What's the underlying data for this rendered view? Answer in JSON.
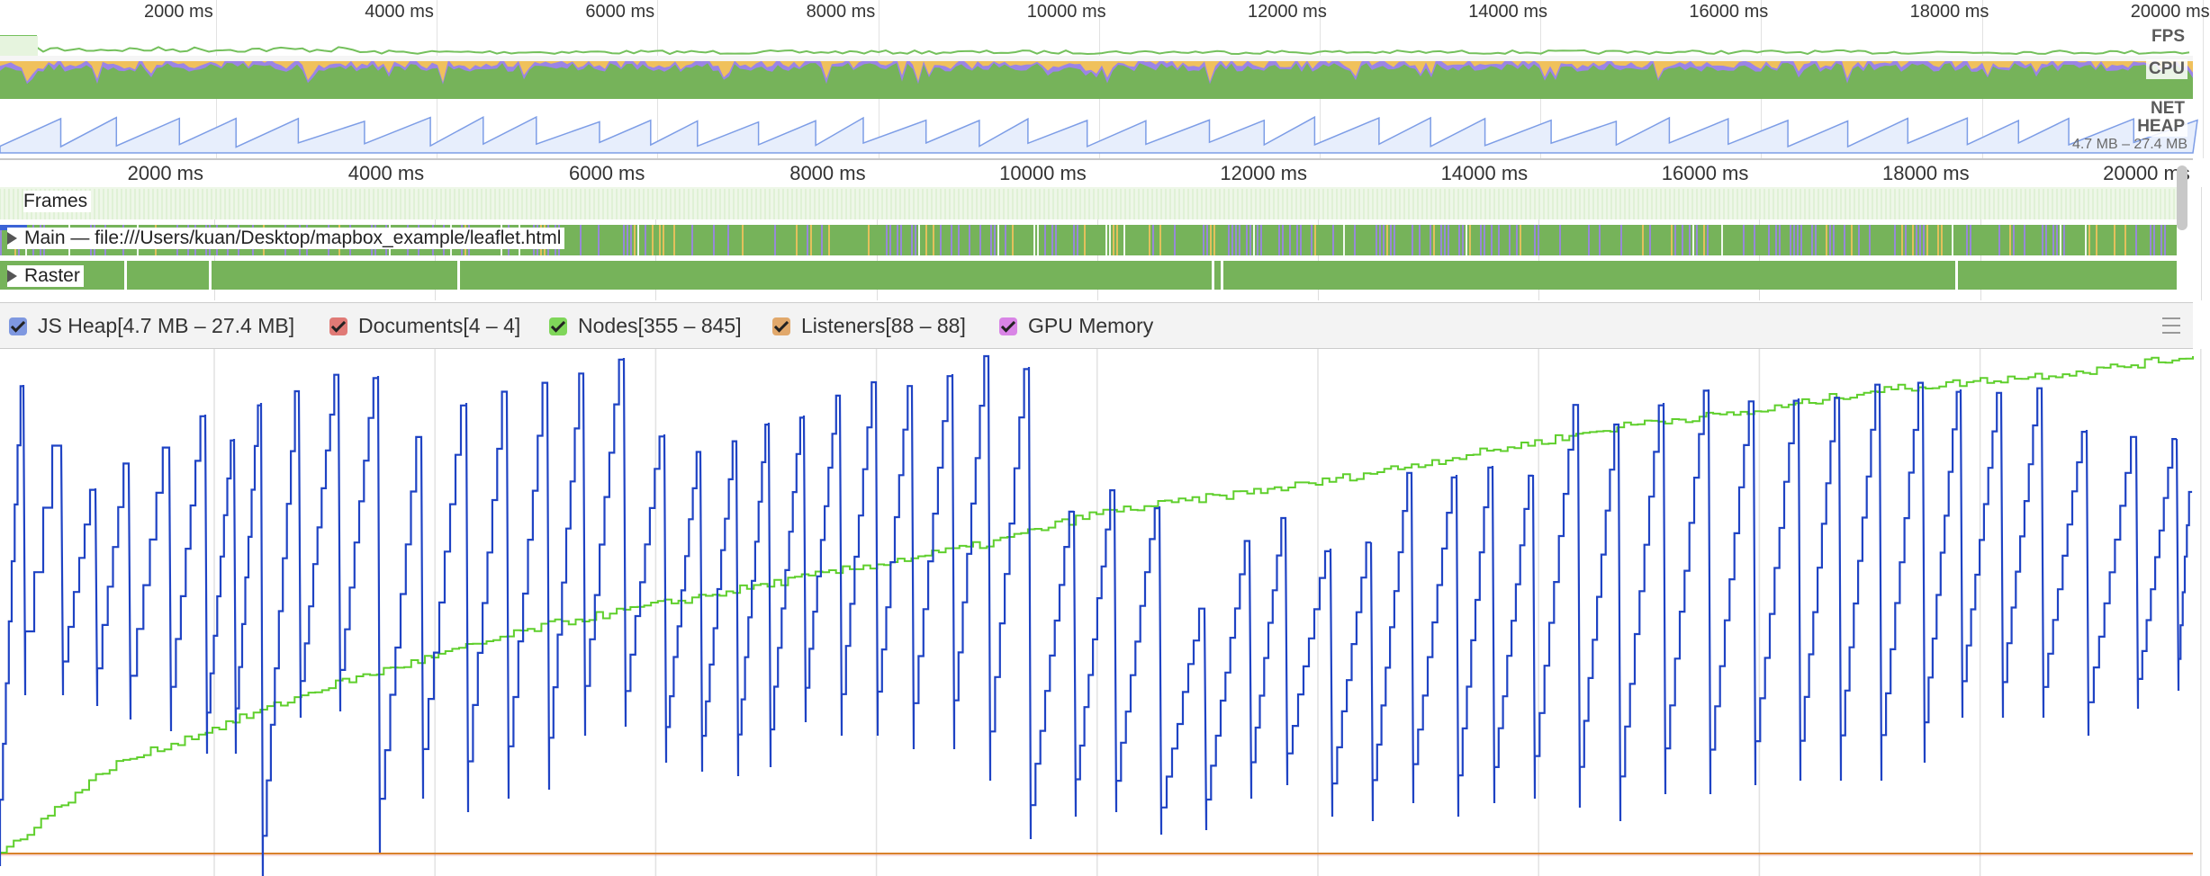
{
  "timeline": {
    "ticks": [
      "2000 ms",
      "4000 ms",
      "6000 ms",
      "8000 ms",
      "10000 ms",
      "12000 ms",
      "14000 ms",
      "16000 ms",
      "18000 ms",
      "20000 ms"
    ],
    "overview_labels": {
      "fps": "FPS",
      "cpu": "CPU",
      "net": "NET",
      "heap": "HEAP"
    },
    "heap_range": "4.7 MB – 27.4 MB"
  },
  "tracks": {
    "frames": "Frames",
    "main": "Main — file:///Users/kuan/Desktop/mapbox_example/leaflet.html",
    "raster": "Raster"
  },
  "legend": {
    "js_heap": "JS Heap[4.7 MB – 27.4 MB]",
    "documents": "Documents[4 – 4]",
    "nodes": "Nodes[355 – 845]",
    "listeners": "Listeners[88 – 88]",
    "gpu_memory": "GPU Memory"
  },
  "colors": {
    "js_heap": "#1f43c4",
    "documents": "#d9534f",
    "nodes": "#5fcf2c",
    "listeners": "#d9822b",
    "gpu_memory": "#c04fd8",
    "cpu_scripting": "#f0c15c",
    "cpu_rendering": "#9b84e6",
    "cpu_painting": "#76b35a",
    "fps": "#74c05c",
    "heap_overview": "#a7bff5"
  },
  "chart_data": {
    "type": "line",
    "x_unit": "ms",
    "xlim": [
      0,
      20000
    ],
    "series": [
      {
        "name": "JS Heap",
        "unit": "MB",
        "range": [
          4.7,
          27.4
        ],
        "color": "#1f43c4",
        "pattern": "sawtooth"
      },
      {
        "name": "Documents",
        "range": [
          4,
          4
        ],
        "color": "#d9534f"
      },
      {
        "name": "Nodes",
        "range": [
          355,
          845
        ],
        "color": "#5fcf2c",
        "x": [
          0,
          1000,
          2000,
          3000,
          4000,
          5000,
          6000,
          7000,
          8000,
          9000,
          10000,
          11000,
          12000,
          13000,
          14000,
          15000,
          16000,
          17000,
          18000,
          19000,
          20000
        ],
        "values": [
          355,
          440,
          480,
          520,
          550,
          580,
          600,
          620,
          640,
          660,
          690,
          705,
          720,
          740,
          760,
          780,
          790,
          810,
          820,
          830,
          845
        ]
      },
      {
        "name": "Listeners",
        "range": [
          88,
          88
        ],
        "color": "#d9822b"
      },
      {
        "name": "GPU Memory",
        "color": "#c04fd8"
      }
    ]
  }
}
